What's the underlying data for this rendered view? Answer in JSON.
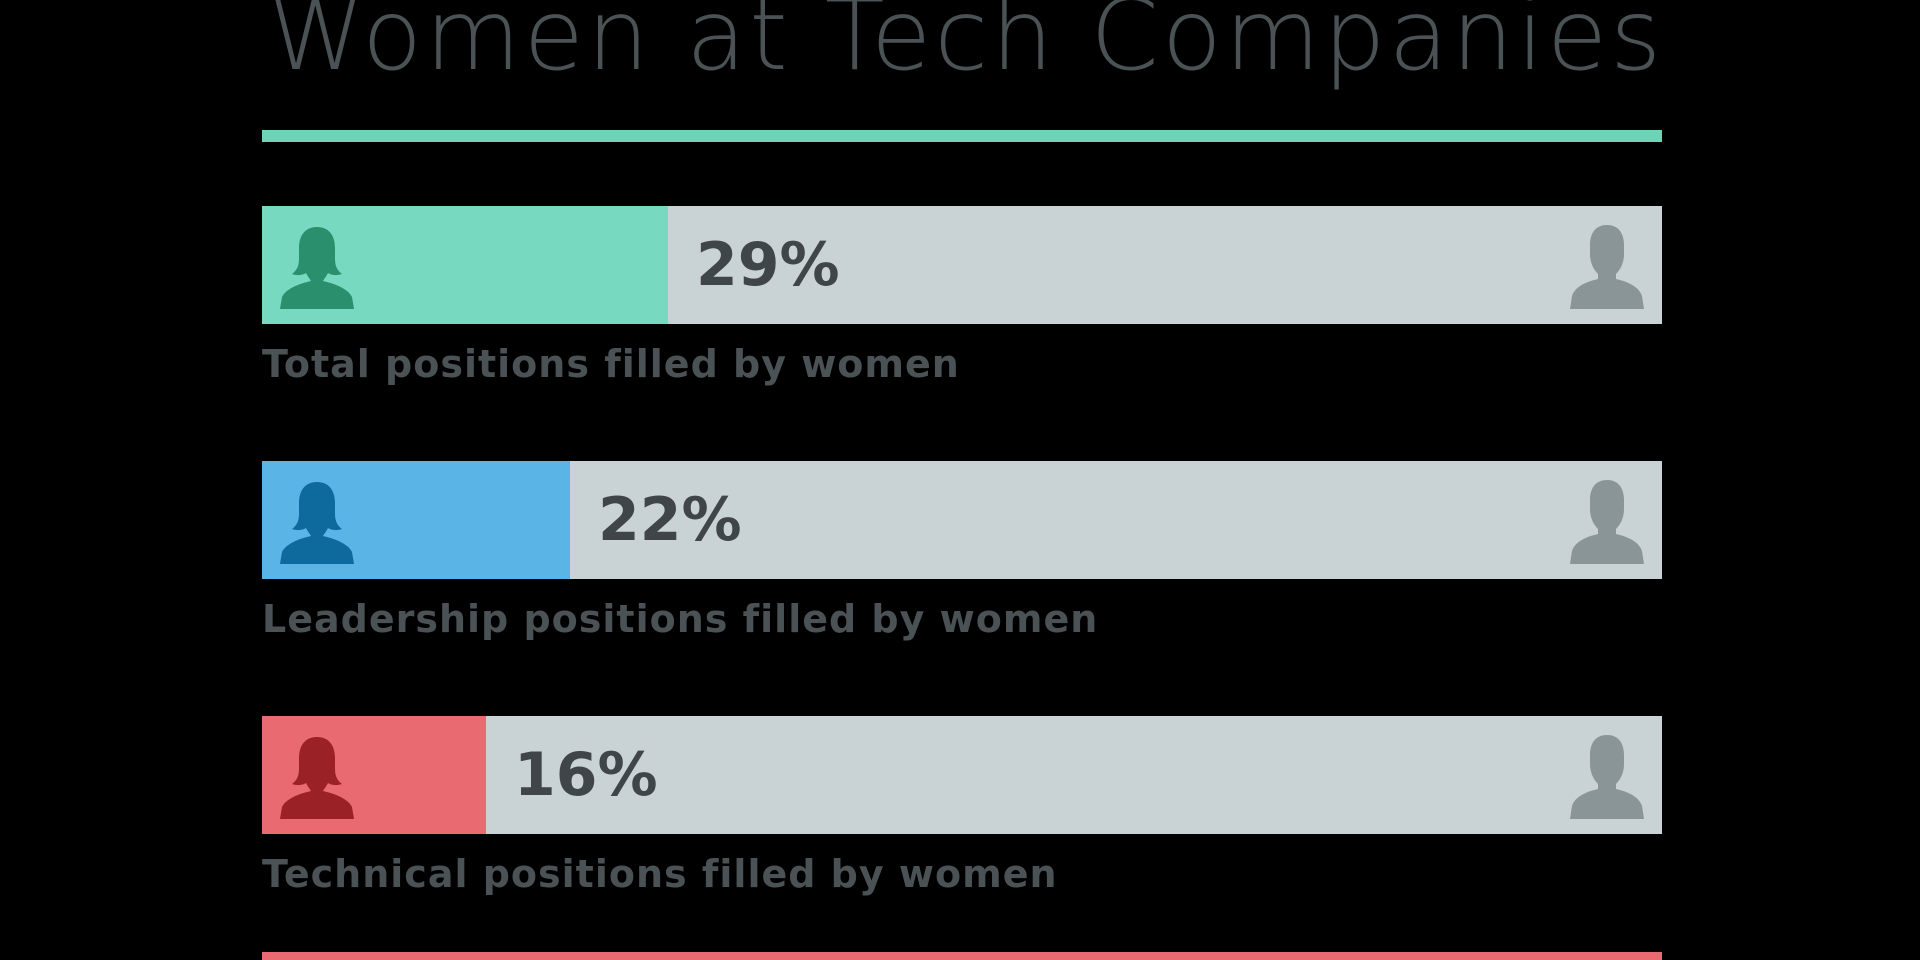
{
  "title": "Women at Tech Companies",
  "colors": {
    "background": "#000000",
    "rule": "#6fd3b8",
    "track": "#c9d2d4",
    "male_icon": "#8a9597",
    "text": "#4a5255"
  },
  "chart_data": {
    "type": "bar",
    "title": "Women at Tech Companies",
    "value_range": [
      0,
      100
    ],
    "unit": "%",
    "bars": [
      {
        "label": "Total positions filled by women",
        "value": 29,
        "display": "29%",
        "fill_color": "#76d9c0",
        "icon_color": "#2a8f6c"
      },
      {
        "label": "Leadership positions filled by women",
        "value": 22,
        "display": "22%",
        "fill_color": "#5ab4e6",
        "icon_color": "#0e6a9c"
      },
      {
        "label": "Technical positions filled by women",
        "value": 16,
        "display": "16%",
        "fill_color": "#e96a70",
        "icon_color": "#9a2226"
      }
    ],
    "next_bar_fill_color": "#e96a70",
    "female_icon": "female-person-icon",
    "male_icon": "male-person-icon"
  }
}
